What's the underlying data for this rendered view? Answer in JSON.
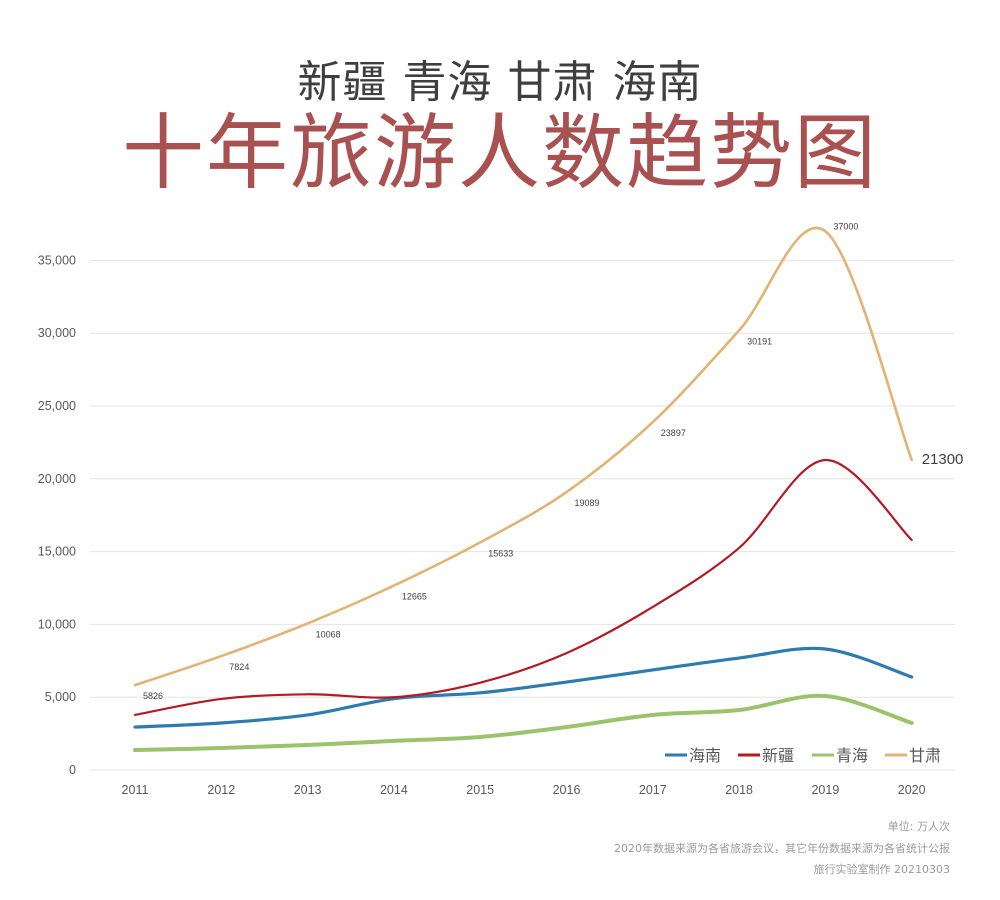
{
  "header": {
    "subtitle": "新疆 青海 甘肃 海南",
    "title": "十年旅游人数趋势图"
  },
  "footer": {
    "unit": "单位: 万人次",
    "source": "2020年数据来源为各省旅游会议，其它年份数据来源为各省统计公报",
    "credit": "旅行实验室制作 20210303"
  },
  "chart_data": {
    "type": "line",
    "title": "十年旅游人数趋势图",
    "subtitle": "新疆 青海 甘肃 海南",
    "xlabel": "",
    "ylabel": "单位: 万人次",
    "x": [
      "2011",
      "2012",
      "2013",
      "2014",
      "2015",
      "2016",
      "2017",
      "2018",
      "2019",
      "2020"
    ],
    "ylim": [
      0,
      37000
    ],
    "yticks": [
      0,
      5000,
      10000,
      15000,
      20000,
      25000,
      30000,
      35000
    ],
    "ytick_labels": [
      "0",
      "5,000",
      "10,000",
      "15,000",
      "20,000",
      "25,000",
      "30,000",
      "35,000"
    ],
    "grid": true,
    "smooth": true,
    "legend_position": "bottom-right",
    "series": [
      {
        "name": "海南",
        "color": "#2e7bb0",
        "values": [
          2950,
          3230,
          3780,
          4900,
          5300,
          6040,
          6870,
          7690,
          8310,
          6390
        ],
        "labels": []
      },
      {
        "name": "新疆",
        "color": "#b01c22",
        "values": [
          3780,
          4880,
          5200,
          5000,
          6000,
          8030,
          11200,
          15250,
          21290,
          15800
        ],
        "labels": []
      },
      {
        "name": "青海",
        "color": "#9bc36b",
        "values": [
          1370,
          1510,
          1720,
          2000,
          2270,
          2950,
          3780,
          4120,
          5080,
          3230
        ],
        "labels": []
      },
      {
        "name": "甘肃",
        "color": "#e3b373",
        "values": [
          5826,
          7824,
          10068,
          12665,
          15633,
          19089,
          23897,
          30191,
          37000,
          21300
        ],
        "labels": [
          "5826",
          "7824",
          "10068",
          "12665",
          "15633",
          "19089",
          "23897",
          "30191",
          "37000",
          "21300"
        ]
      }
    ]
  }
}
